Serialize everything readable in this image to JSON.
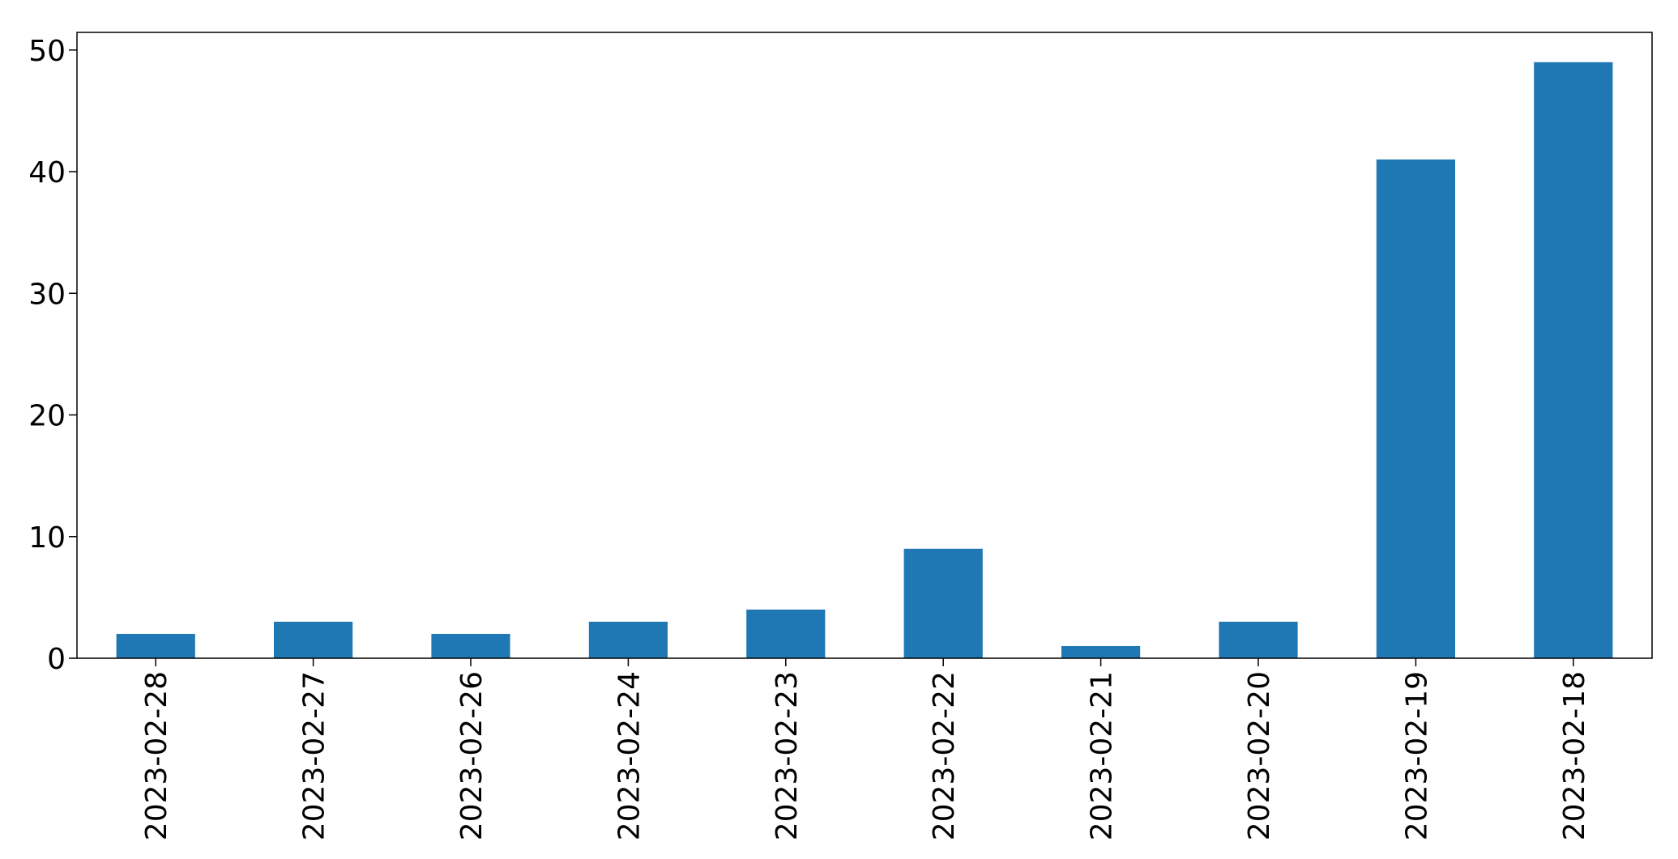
{
  "chart_data": {
    "type": "bar",
    "categories": [
      "2023-02-28",
      "2023-02-27",
      "2023-02-26",
      "2023-02-24",
      "2023-02-23",
      "2023-02-22",
      "2023-02-21",
      "2023-02-20",
      "2023-02-19",
      "2023-02-18"
    ],
    "values": [
      2,
      3,
      2,
      3,
      4,
      9,
      1,
      3,
      41,
      49
    ],
    "ylim": [
      0,
      51.45
    ],
    "yticks": [
      0,
      10,
      20,
      30,
      40,
      50
    ],
    "title": "",
    "xlabel": "",
    "ylabel": "",
    "grid": false,
    "legend": false,
    "colors": {
      "bar": "#1f77b4",
      "axis": "#000000",
      "background": "#ffffff"
    }
  }
}
